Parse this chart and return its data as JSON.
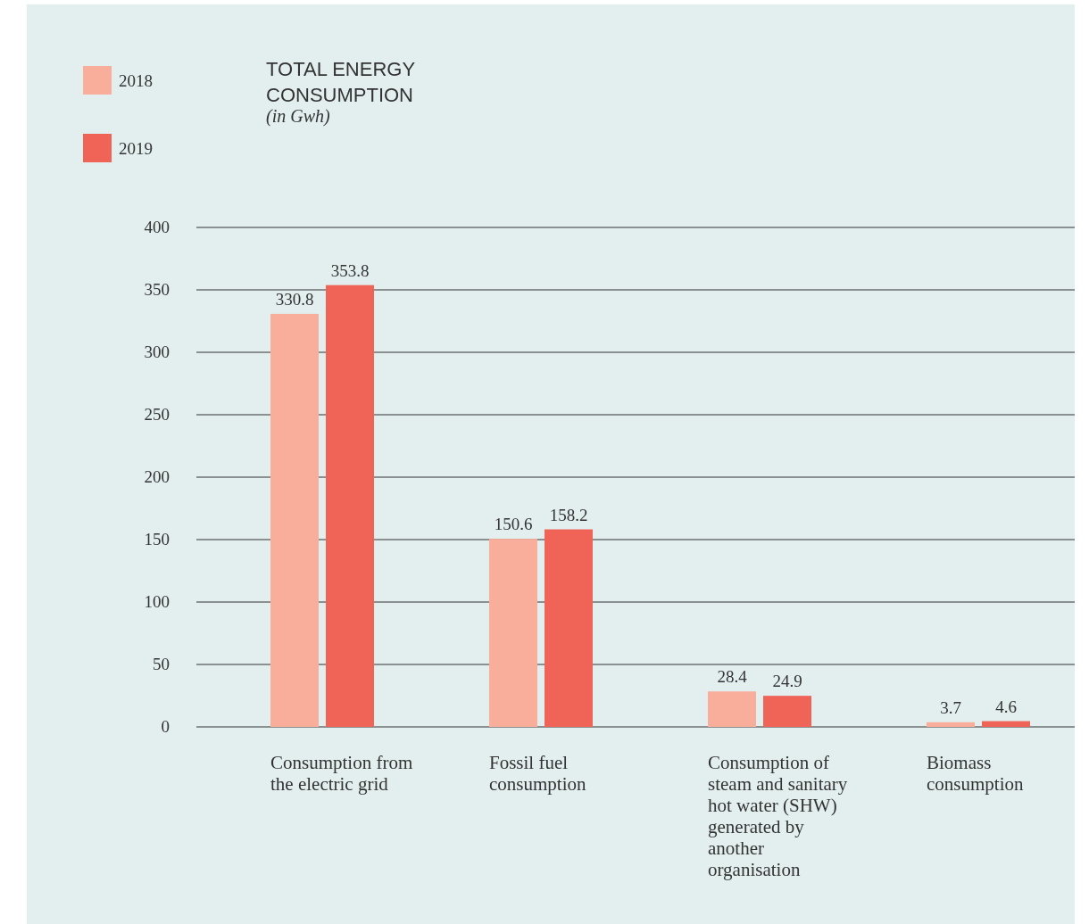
{
  "chart_data": {
    "type": "bar",
    "title": "TOTAL ENERGY CONSUMPTION",
    "subtitle": "(in Gwh)",
    "categories": [
      "Consumption from the electric grid",
      "Fossil fuel consumption",
      "Consumption of steam and sanitary hot water (SHW) generated by another organisation",
      "Biomass consumption"
    ],
    "series": [
      {
        "name": "2018",
        "color": "#f9ae9b",
        "values": [
          330.8,
          150.6,
          28.4,
          3.7
        ]
      },
      {
        "name": "2019",
        "color": "#f06357",
        "values": [
          353.8,
          158.2,
          24.9,
          4.6
        ]
      }
    ],
    "ylim": [
      0,
      400
    ],
    "yticks": [
      0,
      50,
      100,
      150,
      200,
      250,
      300,
      350,
      400
    ],
    "grid": "y",
    "legend": "top left",
    "data_labels": true
  }
}
